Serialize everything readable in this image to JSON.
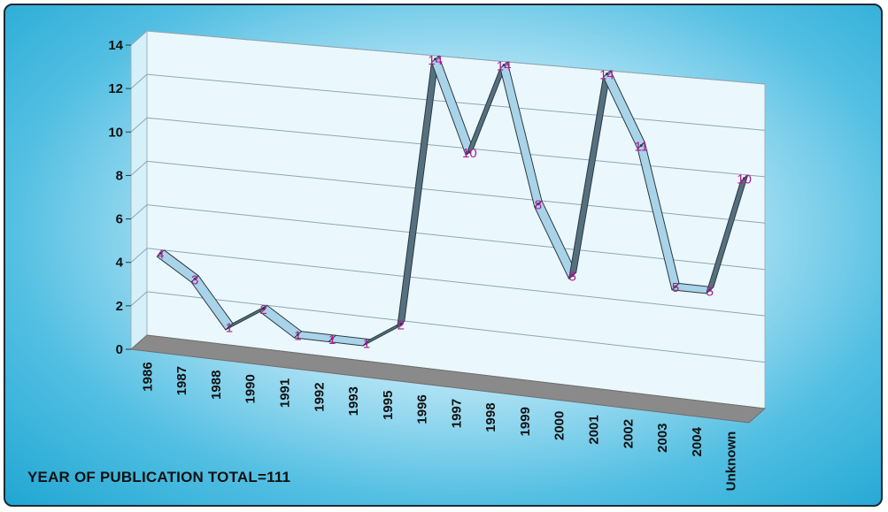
{
  "chart_data": {
    "type": "line",
    "title": "YEAR OF PUBLICATION TOTAL=111",
    "categories": [
      "1986",
      "1987",
      "1988",
      "1990",
      "1991",
      "1992",
      "1993",
      "1995",
      "1996",
      "1997",
      "1998",
      "1999",
      "2000",
      "2001",
      "2002",
      "2003",
      "2004",
      "Unknown"
    ],
    "values": [
      4,
      3,
      1,
      2,
      1,
      1,
      1,
      2,
      14,
      10,
      14,
      8,
      5,
      14,
      11,
      5,
      5,
      10
    ],
    "ylim": [
      0,
      14
    ],
    "yticks": [
      "0",
      "2",
      "4",
      "6",
      "8",
      "10",
      "12",
      "14"
    ],
    "grid": true,
    "legend": "none",
    "colors": {
      "line_face": "#a9d3e8",
      "line_side": "#55707e",
      "data_label": "#b0199a",
      "floor": "#8a8a8a"
    }
  }
}
